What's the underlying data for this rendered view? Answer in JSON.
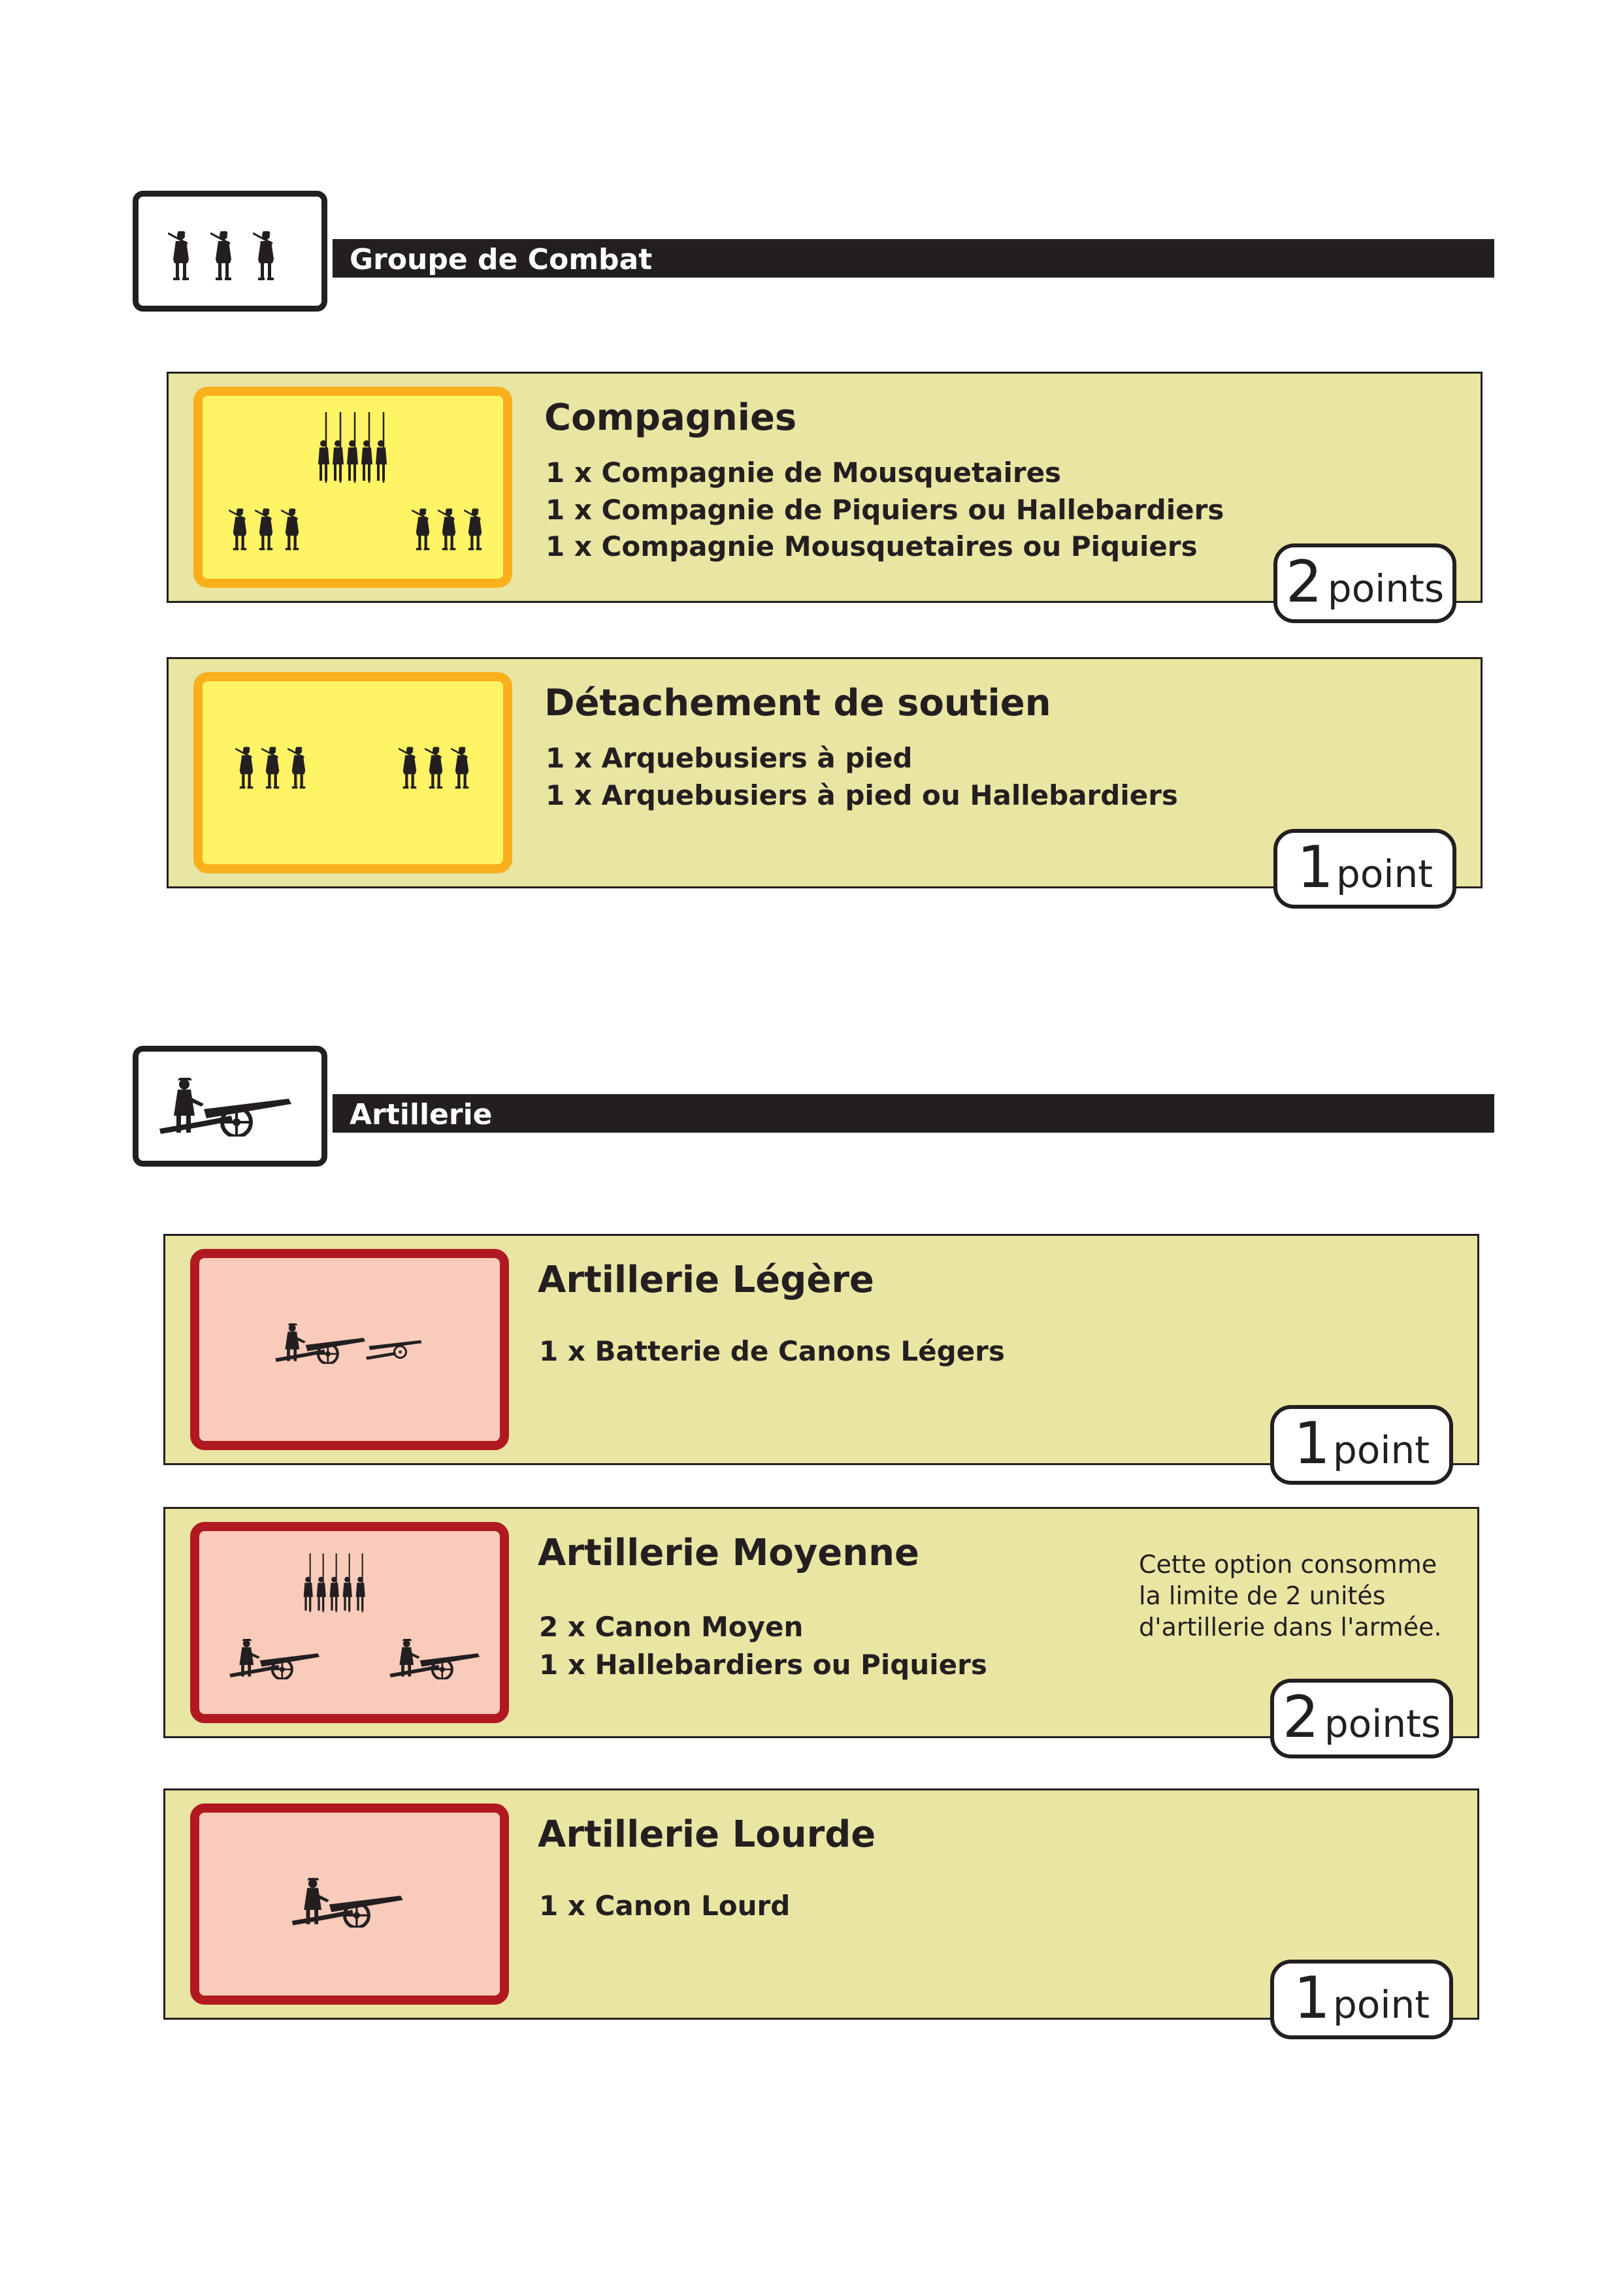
{
  "sections": [
    {
      "title": "Groupe de Combat",
      "icon": "musketeers-trio-icon",
      "cards": [
        {
          "title": "Compagnies",
          "lines": [
            "1 x Compagnie de Mousquetaires",
            "1 x Compagnie de Piquiers ou Hallebardiers",
            "1 x Compagnie Mousquetaires ou Piquiers"
          ],
          "points_value": "2",
          "points_label": "points",
          "thumb_icon": "pike-and-musket-company-icon"
        },
        {
          "title": "Détachement de soutien",
          "lines": [
            "1 x Arquebusiers à pied",
            "1 x Arquebusiers à pied ou Hallebardiers"
          ],
          "points_value": "1",
          "points_label": "point",
          "thumb_icon": "arquebusier-detachment-icon"
        }
      ]
    },
    {
      "title": "Artillerie",
      "icon": "cannon-with-gunner-icon",
      "cards": [
        {
          "title": "Artillerie Légère",
          "lines": [
            "1 x Batterie de Canons Légers"
          ],
          "points_value": "1",
          "points_label": "point",
          "thumb_icon": "light-cannon-battery-icon"
        },
        {
          "title": "Artillerie Moyenne",
          "lines": [
            "2 x Canon Moyen",
            "1 x Hallebardiers ou Piquiers"
          ],
          "note": [
            "Cette option consomme",
            "la limite de 2 unités",
            "d'artillerie dans l'armée."
          ],
          "points_value": "2",
          "points_label": "points",
          "thumb_icon": "medium-cannons-with-pikes-icon"
        },
        {
          "title": "Artillerie Lourde",
          "lines": [
            "1 x Canon Lourd"
          ],
          "points_value": "1",
          "points_label": "point",
          "thumb_icon": "heavy-cannon-icon"
        }
      ]
    }
  ],
  "colors": {
    "ink": "#231f20",
    "card_bg": "#e9e5a3",
    "infantry_fill": "#fef465",
    "infantry_border": "#f9b01c",
    "artillery_fill": "#f8cbba",
    "artillery_border": "#b0191f"
  }
}
